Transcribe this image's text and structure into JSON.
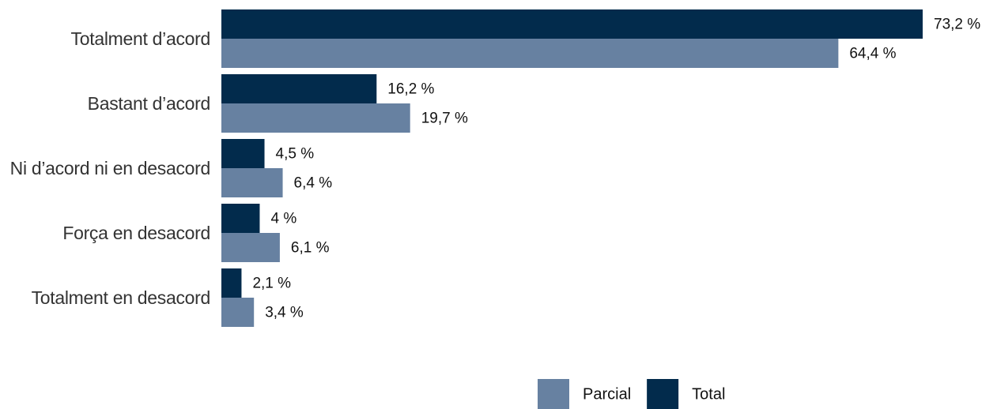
{
  "chart_data": {
    "type": "bar",
    "orientation": "horizontal",
    "categories": [
      "Totalment d’acord",
      "Bastant d’acord",
      "Ni d’acord ni en desacord",
      "Força en desacord",
      "Totalment en desacord"
    ],
    "series": [
      {
        "name": "Parcial",
        "color": "#6781a1",
        "values": [
          64.4,
          19.7,
          6.4,
          6.1,
          3.4
        ],
        "value_labels": [
          "64,4 %",
          "19,7 %",
          "6,4 %",
          "6,1 %",
          "3,4 %"
        ]
      },
      {
        "name": "Total",
        "color": "#022b4c",
        "values": [
          73.2,
          16.2,
          4.5,
          4,
          2.1
        ],
        "value_labels": [
          "73,2 %",
          "16,2 %",
          "4,5 %",
          "4 %",
          "2,1 %"
        ]
      }
    ],
    "legend": "bottom"
  }
}
